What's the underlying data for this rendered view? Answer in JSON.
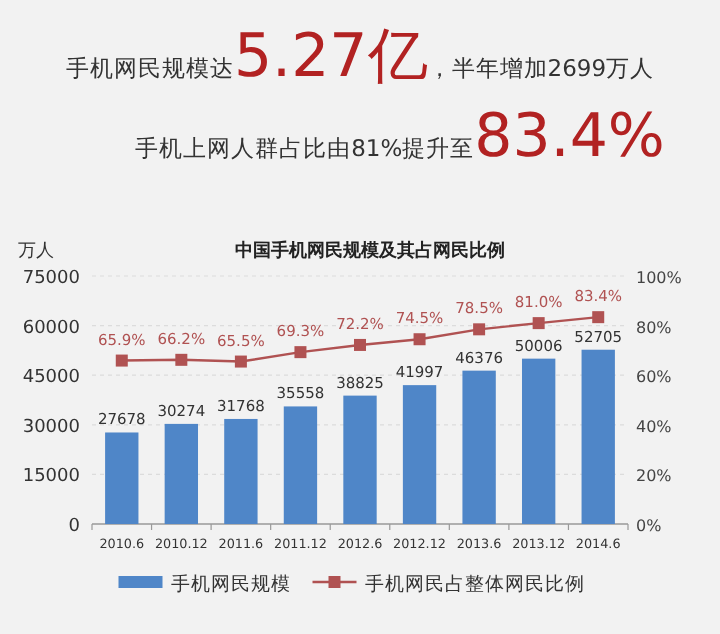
{
  "chart_data": {
    "type": "bar",
    "title": "中国手机网民规模及其占网民比例",
    "ylabel": "万人",
    "annotations": [
      "手机网民规模达5.27亿，半年增加2699万人",
      "手机上网人群占比由81%提升至83.4%"
    ],
    "categories": [
      "2010.6",
      "2010.12",
      "2011.6",
      "2011.12",
      "2012.6",
      "2012.12",
      "2013.6",
      "2013.12",
      "2014.6"
    ],
    "series": [
      {
        "name": "手机网民规模",
        "color": "#4f86c8",
        "values": [
          27678,
          30274,
          31768,
          35558,
          38825,
          41997,
          46376,
          50006,
          52705
        ],
        "data_labels": true
      },
      {
        "name": "手机网民占整体网民比例",
        "type": "line",
        "axis": "y2",
        "color": "#b05252",
        "marker": "square",
        "values": [
          65.9,
          66.2,
          65.5,
          69.3,
          72.2,
          74.5,
          78.5,
          81.0,
          83.4
        ],
        "value_labels": [
          "65.9%",
          "66.2%",
          "65.5%",
          "69.3%",
          "72.2%",
          "74.5%",
          "78.5%",
          "81.0%",
          "83.4%"
        ]
      }
    ],
    "ylim": [
      0,
      75000
    ],
    "yticks": [
      0,
      15000,
      30000,
      45000,
      60000,
      75000
    ],
    "y2lim": [
      0,
      100
    ],
    "y2ticks": [
      {
        "value": 0,
        "label": "0%"
      },
      {
        "value": 20,
        "label": "20%"
      },
      {
        "value": 40,
        "label": "40%"
      },
      {
        "value": 60,
        "label": "60%"
      },
      {
        "value": 80,
        "label": "80%"
      },
      {
        "value": 100,
        "label": "100%"
      }
    ],
    "grid": "y",
    "legend": "bottom"
  }
}
